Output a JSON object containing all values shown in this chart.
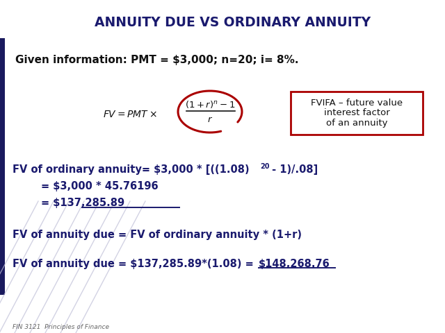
{
  "title": "ANNUITY DUE VS ORDINARY ANNUITY",
  "title_color": "#1a1a6e",
  "title_fontsize": 13.5,
  "slide_bg": "#ffffff",
  "given_info": "Given information: PMT = $3,000; n=20; i= 8%.",
  "given_fontsize": 11,
  "fvifa_box_text": "FVIFA – future value\ninterest factor\nof an annuity",
  "fvifa_box_color": "#aa0000",
  "underline_color": "#1a1a6e",
  "text_color": "#1a1a6e",
  "body_fontsize": 10.5,
  "circle_color": "#aa0000",
  "footer": "FIN 3121  Principles of Finance",
  "footer_fontsize": 6.5,
  "left_bar_color": "#1a1a5e",
  "deco_line_color": "#c0c0d8"
}
